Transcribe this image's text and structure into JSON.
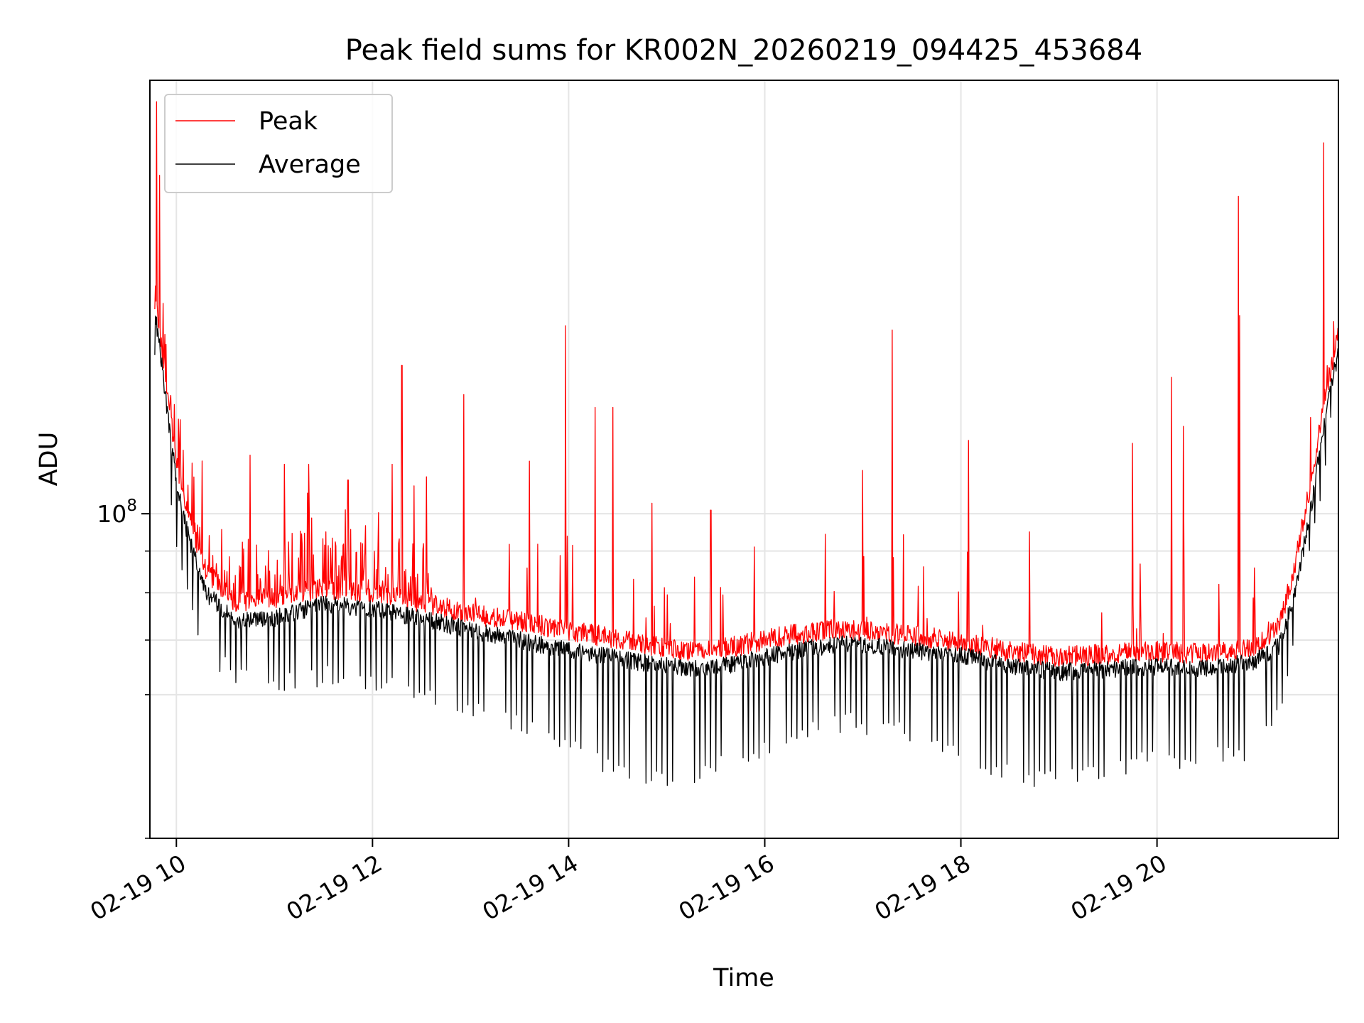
{
  "chart_data": {
    "type": "line",
    "title": "Peak field sums for KR002N_20260219_094425_453684",
    "xlabel": "Time",
    "ylabel": "ADU",
    "yscale": "log",
    "grid": true,
    "legend_position": "upper-left",
    "x_unit": "hours",
    "xlim": [
      9.73,
      21.85
    ],
    "ylim": [
      40000000,
      340000000
    ],
    "x_ticks": [
      {
        "value": 10,
        "label": "02-19 10"
      },
      {
        "value": 12,
        "label": "02-19 12"
      },
      {
        "value": 14,
        "label": "02-19 14"
      },
      {
        "value": 16,
        "label": "02-19 16"
      },
      {
        "value": 18,
        "label": "02-19 18"
      },
      {
        "value": 20,
        "label": "02-19 20"
      }
    ],
    "y_major_ticks": [
      {
        "value": 100000000,
        "base": "10",
        "exp": "8"
      }
    ],
    "y_minor_ticks": [
      40000000,
      60000000,
      70000000,
      80000000,
      90000000
    ],
    "baseline": {
      "hours": [
        9.78,
        9.82,
        9.9,
        10.0,
        10.1,
        10.3,
        10.6,
        11.0,
        11.5,
        12.0,
        12.5,
        13.0,
        13.5,
        14.0,
        14.5,
        15.0,
        15.3,
        15.7,
        16.2,
        16.8,
        17.3,
        18.0,
        18.5,
        19.0,
        19.5,
        20.0,
        20.5,
        21.0,
        21.25,
        21.4,
        21.55,
        21.7,
        21.85
      ],
      "peak": [
        180000000,
        170000000,
        140000000,
        115000000,
        100000000,
        84000000,
        77000000,
        78000000,
        80000000,
        79000000,
        77000000,
        74500000,
        73000000,
        71000000,
        69500000,
        67500000,
        67000000,
        68000000,
        70000000,
        71500000,
        70500000,
        69000000,
        67000000,
        66000000,
        66500000,
        67000000,
        66500000,
        68000000,
        72000000,
        85000000,
        105000000,
        135000000,
        165000000
      ],
      "average": [
        175000000,
        165000000,
        135000000,
        110000000,
        96000000,
        80000000,
        74000000,
        74500000,
        77500000,
        76500000,
        74500000,
        72000000,
        70000000,
        68000000,
        66500000,
        65000000,
        64500000,
        65500000,
        67500000,
        69500000,
        68500000,
        67000000,
        65000000,
        64000000,
        64500000,
        65000000,
        64500000,
        66000000,
        69000000,
        80000000,
        98000000,
        128000000,
        160000000
      ],
      "average_dip_min": [
        150000000,
        140000000,
        110000000,
        90000000,
        78000000,
        66000000,
        61500000,
        60000000,
        61500000,
        60500000,
        58500000,
        56000000,
        53500000,
        50000000,
        47500000,
        45500000,
        46500000,
        48500000,
        51000000,
        54000000,
        53000000,
        50000000,
        46500000,
        45500000,
        47500000,
        48500000,
        48500000,
        50000000,
        56000000,
        70000000,
        85000000,
        110000000,
        150000000
      ]
    },
    "spikes": [
      {
        "x": 9.8,
        "value": 320000000
      },
      {
        "x": 9.83,
        "value": 260000000
      },
      {
        "x": 10.75,
        "value": 118000000
      },
      {
        "x": 11.1,
        "value": 115000000
      },
      {
        "x": 11.35,
        "value": 115000000
      },
      {
        "x": 11.75,
        "value": 110000000
      },
      {
        "x": 12.2,
        "value": 115000000
      },
      {
        "x": 12.3,
        "value": 152000000
      },
      {
        "x": 12.55,
        "value": 111000000
      },
      {
        "x": 12.93,
        "value": 140000000
      },
      {
        "x": 13.6,
        "value": 116000000
      },
      {
        "x": 13.97,
        "value": 170000000
      },
      {
        "x": 14.27,
        "value": 135000000
      },
      {
        "x": 14.45,
        "value": 135000000
      },
      {
        "x": 14.85,
        "value": 103000000
      },
      {
        "x": 15.12,
        "value": 110000000
      },
      {
        "x": 15.45,
        "value": 101000000
      },
      {
        "x": 17.0,
        "value": 113000000
      },
      {
        "x": 17.3,
        "value": 168000000
      },
      {
        "x": 18.08,
        "value": 123000000
      },
      {
        "x": 18.7,
        "value": 95000000
      },
      {
        "x": 19.75,
        "value": 122000000
      },
      {
        "x": 20.15,
        "value": 147000000
      },
      {
        "x": 20.27,
        "value": 128000000
      },
      {
        "x": 20.83,
        "value": 245000000
      },
      {
        "x": 20.84,
        "value": 175000000
      },
      {
        "x": 21.7,
        "value": 285000000
      }
    ],
    "series": [
      {
        "name": "Peak",
        "color": "#ff0000"
      },
      {
        "name": "Average",
        "color": "#000000"
      }
    ]
  }
}
